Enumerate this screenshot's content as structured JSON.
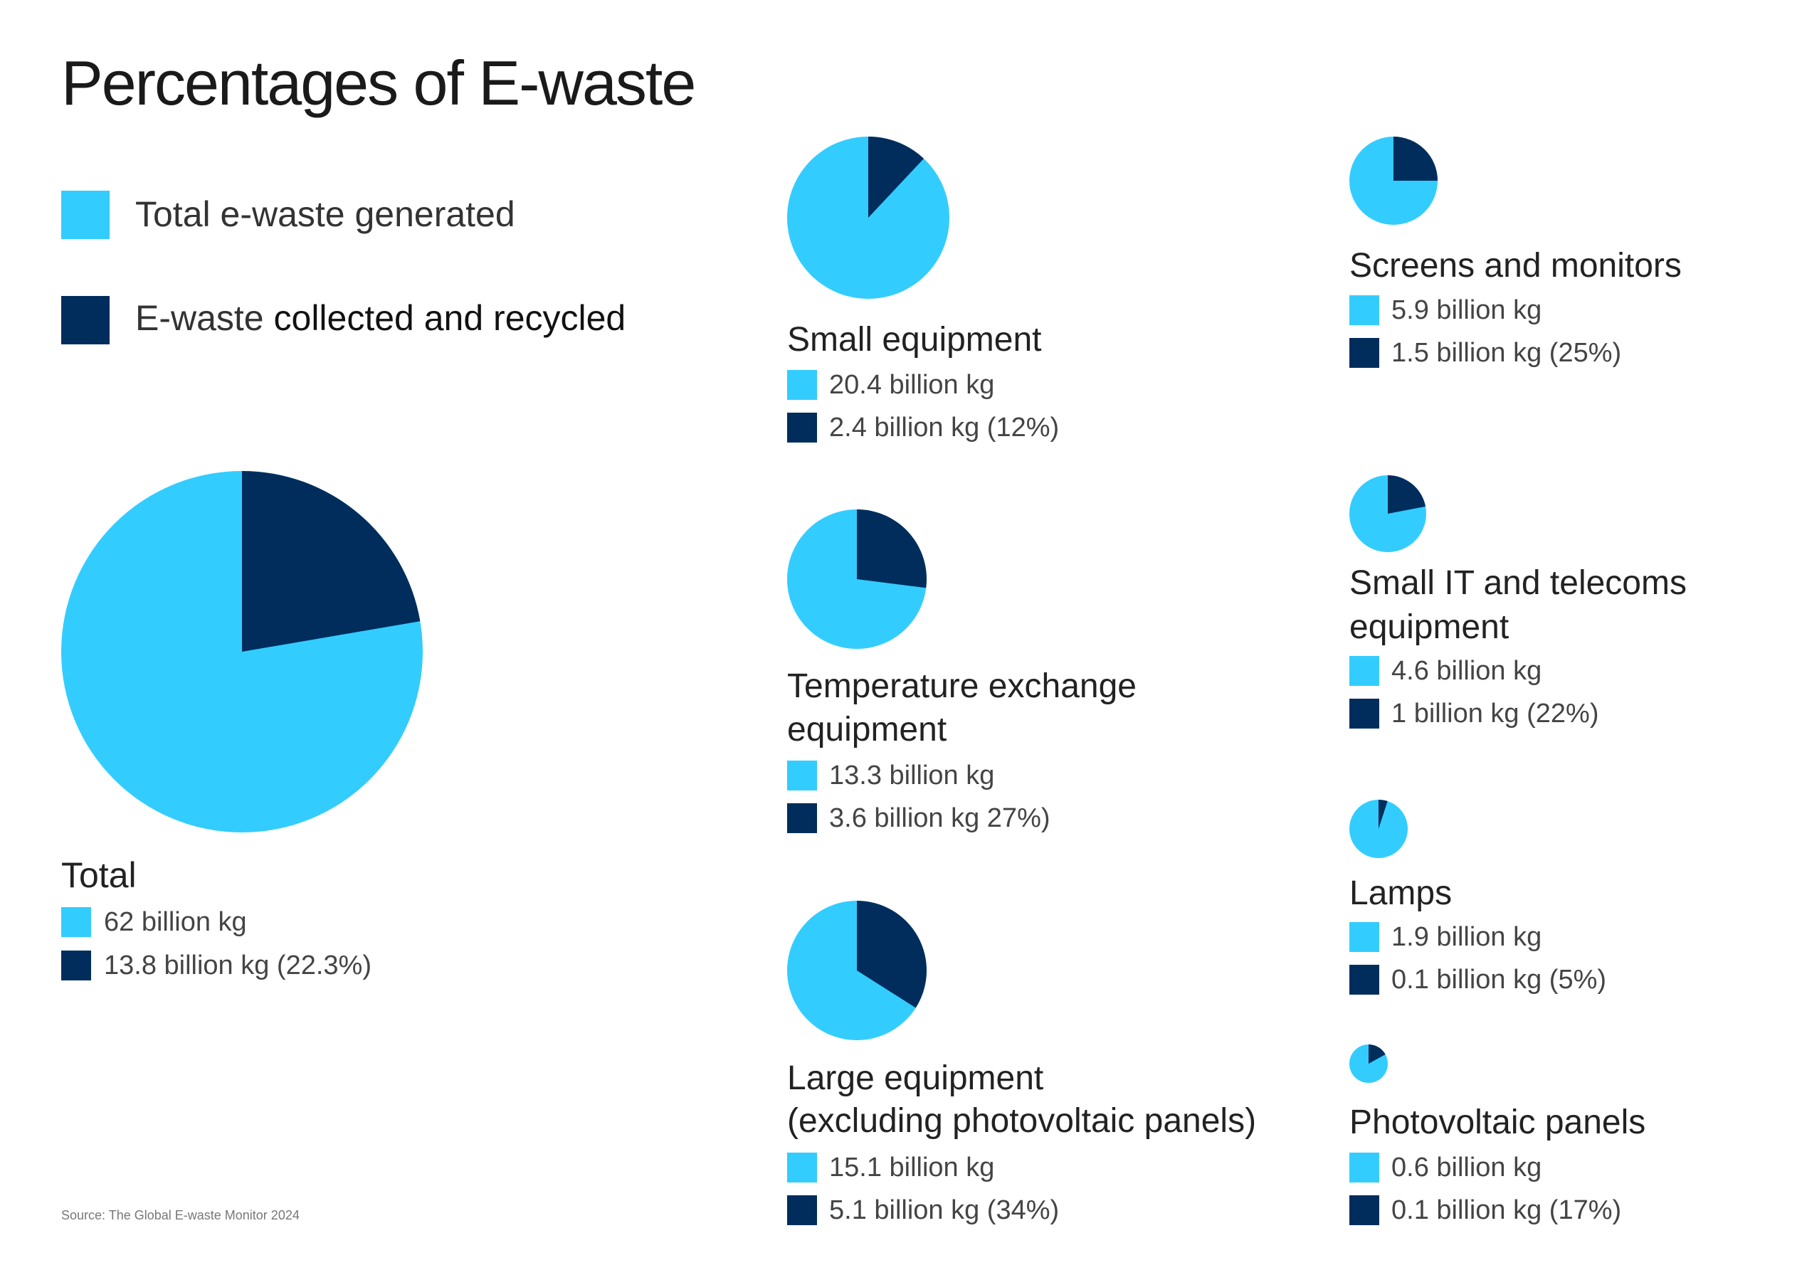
{
  "title": "Percentages of E-waste",
  "source": "Source: The Global E-waste Monitor 2024",
  "colors": {
    "generated": "#33CCFF",
    "recycled": "#002D5C"
  },
  "legend": {
    "generated": "Total e-waste generated",
    "recycled_prefix": "E-waste ",
    "recycled_emph": "collected and recycled"
  },
  "chart_data": [
    {
      "type": "pie",
      "title": "Total",
      "slices": [
        {
          "label": "62 billion kg",
          "value": 62
        },
        {
          "label": "13.8 billion kg (22.3%)",
          "value": 13.8,
          "percent": 22.3
        }
      ]
    },
    {
      "type": "pie",
      "title": "Small equipment",
      "slices": [
        {
          "label": "20.4 billion kg",
          "value": 20.4
        },
        {
          "label": "2.4 billion kg (12%)",
          "value": 2.4,
          "percent": 12
        }
      ]
    },
    {
      "type": "pie",
      "title": "Temperature exchange equipment",
      "title_lines": [
        "Temperature exchange",
        "equipment"
      ],
      "slices": [
        {
          "label": "13.3 billion kg",
          "value": 13.3
        },
        {
          "label": "3.6 billion kg 27%)",
          "value": 3.6,
          "percent": 27
        }
      ]
    },
    {
      "type": "pie",
      "title": "Large equipment (excluding photovoltaic panels)",
      "title_lines": [
        "Large equipment",
        "(excluding photovoltaic panels)"
      ],
      "slices": [
        {
          "label": "15.1 billion kg",
          "value": 15.1
        },
        {
          "label": "5.1 billion kg (34%)",
          "value": 5.1,
          "percent": 34
        }
      ]
    },
    {
      "type": "pie",
      "title": "Screens and monitors",
      "slices": [
        {
          "label": "5.9 billion kg",
          "value": 5.9
        },
        {
          "label": "1.5 billion kg (25%)",
          "value": 1.5,
          "percent": 25
        }
      ]
    },
    {
      "type": "pie",
      "title": "Small IT and telecoms equipment",
      "title_lines": [
        "Small IT and telecoms",
        "equipment"
      ],
      "slices": [
        {
          "label": "4.6 billion kg",
          "value": 4.6
        },
        {
          "label": "1 billion kg (22%)",
          "value": 1,
          "percent": 22
        }
      ]
    },
    {
      "type": "pie",
      "title": "Lamps",
      "slices": [
        {
          "label": "1.9 billion kg",
          "value": 1.9
        },
        {
          "label": "0.1 billion kg  (5%)",
          "value": 0.1,
          "percent": 5
        }
      ]
    },
    {
      "type": "pie",
      "title": "Photovoltaic panels",
      "slices": [
        {
          "label": "0.6 billion kg",
          "value": 0.6
        },
        {
          "label": "0.1 billion kg (17%)",
          "value": 0.1,
          "percent": 17
        }
      ]
    }
  ]
}
